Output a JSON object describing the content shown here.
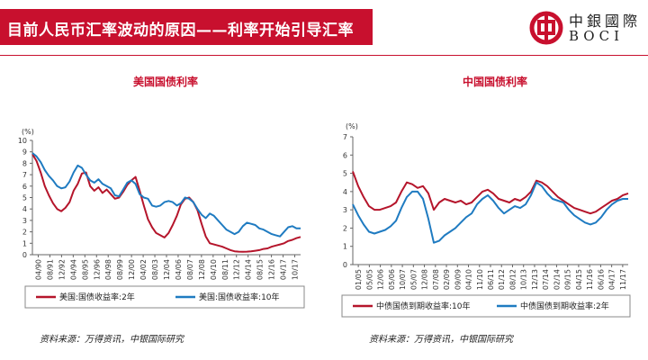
{
  "header": {
    "title": "目前人民币汇率波动的原因——利率开始引导汇率",
    "bar_color": "#c8102e"
  },
  "logo": {
    "cn": "中銀國際",
    "en": "BOCI",
    "icon": "bank-of-china-logo-icon"
  },
  "chart_data": [
    {
      "type": "line",
      "title": "美国国债利率",
      "unit_label": "(%)",
      "ylim": [
        0,
        10
      ],
      "yticks": [
        "0",
        "1",
        "2",
        "3",
        "4",
        "5",
        "6",
        "7",
        "8",
        "9",
        "10"
      ],
      "x_ticks": [
        "04/90",
        "08/91",
        "12/92",
        "04/94",
        "08/95",
        "12/96",
        "04/98",
        "08/99",
        "12/00",
        "04/02",
        "08/03",
        "12/04",
        "04/06",
        "08/07",
        "12/08",
        "04/10",
        "08/11",
        "12/12",
        "04/14",
        "08/15",
        "12/16",
        "04/17",
        "10/17"
      ],
      "grid": false,
      "legend_position": "bottom",
      "series": [
        {
          "name": "美国:国债收益率:2年",
          "color": "#b5152b",
          "values": [
            8.8,
            8.2,
            7.2,
            6.0,
            5.2,
            4.5,
            4.0,
            3.8,
            4.1,
            4.6,
            5.6,
            6.2,
            7.1,
            7.2,
            6.0,
            5.6,
            5.9,
            5.4,
            5.7,
            5.3,
            4.9,
            5.0,
            5.5,
            6.1,
            6.5,
            6.8,
            5.6,
            4.3,
            3.1,
            2.4,
            1.9,
            1.7,
            1.5,
            1.9,
            2.6,
            3.4,
            4.4,
            4.9,
            5.0,
            4.6,
            3.9,
            2.7,
            1.6,
            1.0,
            0.9,
            0.8,
            0.7,
            0.55,
            0.4,
            0.3,
            0.27,
            0.25,
            0.27,
            0.3,
            0.35,
            0.4,
            0.5,
            0.55,
            0.7,
            0.8,
            0.9,
            1.0,
            1.2,
            1.3,
            1.45,
            1.55
          ]
        },
        {
          "name": "美国:国债收益率:10年",
          "color": "#1f7bc1",
          "values": [
            8.9,
            8.6,
            8.1,
            7.4,
            6.9,
            6.5,
            6.0,
            5.8,
            5.9,
            6.4,
            7.2,
            7.8,
            7.6,
            7.0,
            6.5,
            6.3,
            6.6,
            6.2,
            6.0,
            5.8,
            5.2,
            5.1,
            5.7,
            6.3,
            6.5,
            6.2,
            5.3,
            5.0,
            4.9,
            4.3,
            4.2,
            4.3,
            4.6,
            4.7,
            4.6,
            4.3,
            4.5,
            5.0,
            4.9,
            4.6,
            4.0,
            3.5,
            3.2,
            3.6,
            3.4,
            3.0,
            2.6,
            2.2,
            2.0,
            1.8,
            2.0,
            2.5,
            2.8,
            2.7,
            2.6,
            2.3,
            2.2,
            2.0,
            1.8,
            1.7,
            1.6,
            2.0,
            2.4,
            2.5,
            2.3,
            2.3
          ]
        }
      ]
    },
    {
      "type": "line",
      "title": "中国国债利率",
      "unit_label": "(%)",
      "ylim": [
        0,
        7
      ],
      "yticks": [
        "0",
        "1",
        "2",
        "3",
        "4",
        "5",
        "6",
        "7"
      ],
      "x_ticks": [
        "01/05",
        "05/05",
        "12/06",
        "05/06",
        "10/07",
        "05/07",
        "12/08",
        "07/08",
        "02/09",
        "09/09",
        "04/10",
        "11/10",
        "06/11",
        "01/12",
        "08/12",
        "10/13",
        "12/13",
        "07/14",
        "02/14",
        "09/15",
        "04/15",
        "11/16",
        "06/16",
        "04/17",
        "11/17"
      ],
      "grid": false,
      "legend_position": "bottom",
      "series": [
        {
          "name": "中债国债到期收益率:10年",
          "color": "#b5152b",
          "values": [
            5.1,
            4.3,
            3.7,
            3.2,
            3.0,
            3.0,
            3.1,
            3.2,
            3.4,
            4.0,
            4.5,
            4.4,
            4.2,
            4.3,
            3.9,
            3.0,
            3.4,
            3.6,
            3.5,
            3.4,
            3.5,
            3.3,
            3.4,
            3.7,
            4.0,
            4.1,
            3.9,
            3.6,
            3.5,
            3.4,
            3.6,
            3.5,
            3.7,
            4.0,
            4.6,
            4.5,
            4.3,
            4.0,
            3.7,
            3.5,
            3.3,
            3.1,
            3.0,
            2.9,
            2.8,
            2.9,
            3.1,
            3.3,
            3.5,
            3.6,
            3.8,
            3.9
          ]
        },
        {
          "name": "中债国债到期收益率:2年",
          "color": "#1f7bc1",
          "values": [
            3.3,
            2.7,
            2.2,
            1.8,
            1.7,
            1.8,
            1.9,
            2.1,
            2.4,
            3.1,
            3.7,
            4.0,
            4.0,
            3.6,
            2.5,
            1.2,
            1.3,
            1.6,
            1.8,
            2.0,
            2.3,
            2.6,
            2.8,
            3.3,
            3.6,
            3.8,
            3.5,
            3.1,
            2.8,
            3.0,
            3.2,
            3.1,
            3.3,
            3.8,
            4.5,
            4.3,
            3.9,
            3.6,
            3.5,
            3.4,
            3.0,
            2.7,
            2.5,
            2.3,
            2.2,
            2.3,
            2.6,
            3.0,
            3.3,
            3.5,
            3.6,
            3.6
          ]
        }
      ]
    }
  ],
  "sources": [
    "资料来源：万得资讯，中银国际研究",
    "资料来源：万得资讯，中银国际研究"
  ]
}
